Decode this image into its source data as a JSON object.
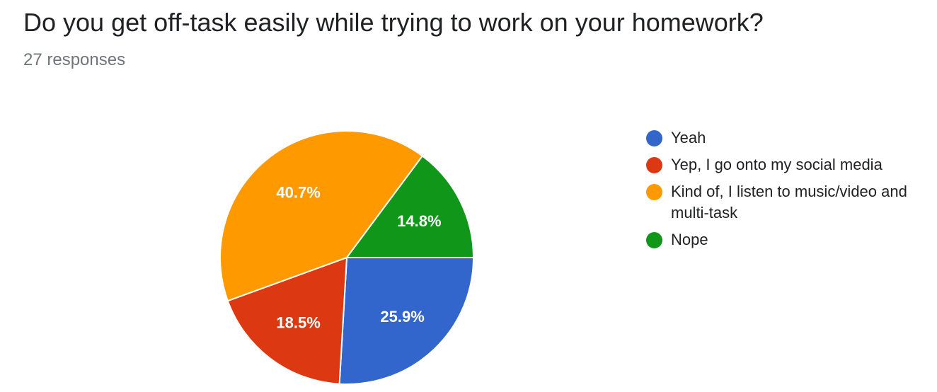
{
  "header": {
    "title": "Do you get off-task easily while trying to work on your homework?",
    "responses": "27 responses"
  },
  "chart_data": {
    "type": "pie",
    "title": "Do you get off-task easily while trying to work on your homework?",
    "categories": [
      "Yeah",
      "Yep, I go onto my social media",
      "Kind of, I listen to music/video and multi-task",
      "Nope"
    ],
    "values": [
      25.9,
      18.5,
      40.7,
      14.8
    ],
    "labels": [
      "25.9%",
      "18.5%",
      "40.7%",
      "14.8%"
    ],
    "colors": [
      "#3366cc",
      "#dc3912",
      "#ff9900",
      "#109618"
    ],
    "legend_position": "right"
  },
  "legend": {
    "items": [
      {
        "label": "Yeah",
        "color": "#3366cc"
      },
      {
        "label": "Yep, I go onto my social media",
        "color": "#dc3912"
      },
      {
        "label": "Kind of, I listen to music/video and multi-task",
        "color": "#ff9900"
      },
      {
        "label": "Nope",
        "color": "#109618"
      }
    ]
  }
}
